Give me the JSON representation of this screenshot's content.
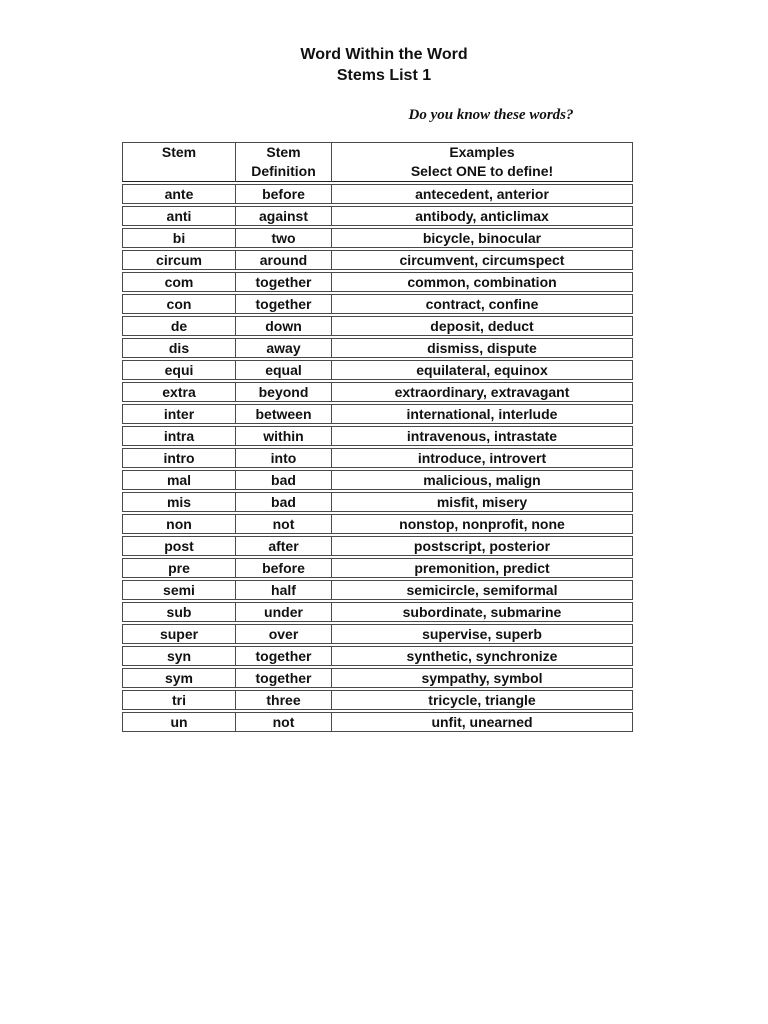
{
  "page": {
    "title_line1": "Word Within the Word",
    "title_line2": "Stems List 1",
    "tagline": "Do you know these words?"
  },
  "table": {
    "headers": {
      "stem": "Stem",
      "definition_line1": "Stem",
      "definition_line2": "Definition",
      "examples_line1": "Examples",
      "examples_line2": "Select ONE to define!"
    },
    "rows": [
      {
        "stem": "ante",
        "definition": "before",
        "examples": "antecedent, anterior"
      },
      {
        "stem": "anti",
        "definition": "against",
        "examples": "antibody, anticlimax"
      },
      {
        "stem": "bi",
        "definition": "two",
        "examples": "bicycle, binocular"
      },
      {
        "stem": "circum",
        "definition": "around",
        "examples": "circumvent, circumspect"
      },
      {
        "stem": "com",
        "definition": "together",
        "examples": "common, combination"
      },
      {
        "stem": "con",
        "definition": "together",
        "examples": "contract, confine"
      },
      {
        "stem": "de",
        "definition": "down",
        "examples": "deposit, deduct"
      },
      {
        "stem": "dis",
        "definition": "away",
        "examples": "dismiss, dispute"
      },
      {
        "stem": "equi",
        "definition": "equal",
        "examples": "equilateral, equinox"
      },
      {
        "stem": "extra",
        "definition": "beyond",
        "examples": "extraordinary, extravagant"
      },
      {
        "stem": "inter",
        "definition": "between",
        "examples": "international, interlude"
      },
      {
        "stem": "intra",
        "definition": "within",
        "examples": "intravenous, intrastate"
      },
      {
        "stem": "intro",
        "definition": "into",
        "examples": "introduce, introvert"
      },
      {
        "stem": "mal",
        "definition": "bad",
        "examples": "malicious, malign"
      },
      {
        "stem": "mis",
        "definition": "bad",
        "examples": "misfit, misery"
      },
      {
        "stem": "non",
        "definition": "not",
        "examples": "nonstop, nonprofit, none"
      },
      {
        "stem": "post",
        "definition": "after",
        "examples": "postscript, posterior"
      },
      {
        "stem": "pre",
        "definition": "before",
        "examples": "premonition, predict"
      },
      {
        "stem": "semi",
        "definition": "half",
        "examples": "semicircle, semiformal"
      },
      {
        "stem": "sub",
        "definition": "under",
        "examples": "subordinate, submarine"
      },
      {
        "stem": "super",
        "definition": "over",
        "examples": "supervise, superb"
      },
      {
        "stem": "syn",
        "definition": "together",
        "examples": "synthetic, synchronize"
      },
      {
        "stem": "sym",
        "definition": "together",
        "examples": "sympathy, symbol"
      },
      {
        "stem": "tri",
        "definition": "three",
        "examples": "tricycle, triangle"
      },
      {
        "stem": "un",
        "definition": "not",
        "examples": "unfit, unearned"
      }
    ]
  }
}
